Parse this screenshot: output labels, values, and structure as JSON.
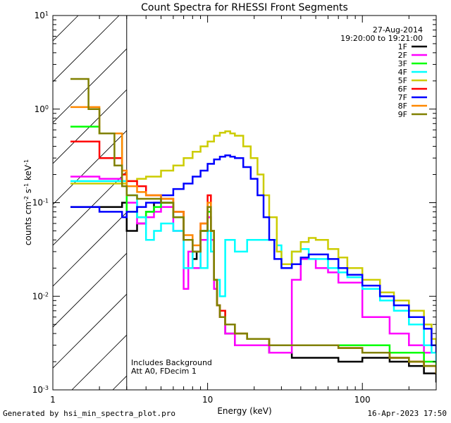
{
  "chart_data": {
    "type": "line",
    "title": "Count Spectra for RHESSI Front Segments",
    "xlabel": "Energy (keV)",
    "ylabel_parts": {
      "base": "counts cm",
      "exp1": "-2",
      "mid1": " s",
      "exp2": "-1",
      "mid2": " keV",
      "exp3": "-1"
    },
    "x_scale": "log",
    "y_scale": "log",
    "xlim": [
      1,
      300
    ],
    "ylim": [
      0.001,
      10
    ],
    "x_ticks": [
      {
        "value": 1,
        "label": "1"
      },
      {
        "value": 10,
        "label": "10"
      },
      {
        "value": 100,
        "label": "100"
      }
    ],
    "y_ticks": [
      {
        "value": 0.001,
        "base": "10",
        "exp": "-3"
      },
      {
        "value": 0.01,
        "base": "10",
        "exp": "-2"
      },
      {
        "value": 0.1,
        "base": "10",
        "exp": "-1"
      },
      {
        "value": 1,
        "base": "10",
        "exp": "0"
      },
      {
        "value": 10,
        "base": "10",
        "exp": "1"
      }
    ],
    "date": "27-Aug-2014",
    "time_range": "19:20:00 to 19:21:00",
    "shaded_region": {
      "from": 1,
      "to": 3
    },
    "annotations": [
      "Includes Background",
      "Att A0, FDecim 1"
    ],
    "series": [
      {
        "name": "1F",
        "color": "#000000",
        "x": [
          1.3,
          2.0,
          2.8,
          3.0,
          3.5,
          4.0,
          4.5,
          5.0,
          6.0,
          7.0,
          8.0,
          8.5,
          9.0,
          10.0,
          10.5,
          11.0,
          11.5,
          12,
          13,
          15,
          18,
          25,
          35,
          50,
          70,
          100,
          150,
          200,
          250,
          300
        ],
        "values": [
          0.09,
          0.09,
          0.1,
          0.05,
          0.06,
          0.08,
          0.1,
          0.1,
          0.08,
          0.04,
          0.025,
          0.03,
          0.05,
          0.07,
          0.04,
          0.015,
          0.008,
          0.006,
          0.004,
          0.003,
          0.003,
          0.0025,
          0.0022,
          0.0022,
          0.002,
          0.0022,
          0.002,
          0.0018,
          0.0015,
          0.0012
        ]
      },
      {
        "name": "2F",
        "color": "#ff00ff",
        "x": [
          1.3,
          2.0,
          2.8,
          3.0,
          3.5,
          4.0,
          4.5,
          5.0,
          6.0,
          7.0,
          7.5,
          8.0,
          9.0,
          10.0,
          10.5,
          11.0,
          11.5,
          12,
          13,
          15,
          18,
          25,
          35,
          40,
          50,
          60,
          70,
          100,
          150,
          200,
          250,
          300
        ],
        "values": [
          0.19,
          0.18,
          0.17,
          0.1,
          0.06,
          0.07,
          0.08,
          0.09,
          0.05,
          0.012,
          0.03,
          0.02,
          0.04,
          0.07,
          0.04,
          0.012,
          0.008,
          0.006,
          0.004,
          0.003,
          0.003,
          0.0025,
          0.015,
          0.025,
          0.02,
          0.018,
          0.014,
          0.006,
          0.004,
          0.003,
          0.0025,
          0.002
        ]
      },
      {
        "name": "3F",
        "color": "#00ff00",
        "x": [
          1.3,
          2.0,
          2.8,
          3.0,
          3.5,
          4.0,
          4.5,
          5.0,
          6.0,
          7.0,
          8.0,
          9.0,
          10.0,
          10.5,
          11.0,
          11.5,
          12,
          13,
          15,
          18,
          25,
          35,
          50,
          70,
          100,
          150,
          200,
          250,
          300
        ],
        "values": [
          0.65,
          0.55,
          0.2,
          0.08,
          0.07,
          0.08,
          0.09,
          0.1,
          0.07,
          0.04,
          0.03,
          0.05,
          0.08,
          0.05,
          0.015,
          0.008,
          0.007,
          0.005,
          0.004,
          0.0035,
          0.003,
          0.003,
          0.003,
          0.003,
          0.003,
          0.0025,
          0.0025,
          0.002,
          0.0018
        ]
      },
      {
        "name": "4F",
        "color": "#00ffff",
        "x": [
          1.3,
          2.0,
          2.8,
          3.0,
          3.5,
          4.0,
          4.5,
          5.0,
          6.0,
          7.0,
          8.0,
          9.0,
          10.0,
          10.5,
          11.0,
          12,
          13,
          15,
          18,
          25,
          28,
          30,
          35,
          40,
          45,
          50,
          60,
          70,
          80,
          100,
          130,
          160,
          200,
          250,
          280,
          300
        ],
        "values": [
          0.17,
          0.17,
          0.17,
          0.12,
          0.07,
          0.04,
          0.05,
          0.06,
          0.05,
          0.02,
          0.03,
          0.02,
          0.05,
          0.03,
          0.015,
          0.01,
          0.04,
          0.03,
          0.04,
          0.04,
          0.035,
          0.02,
          0.03,
          0.032,
          0.025,
          0.025,
          0.02,
          0.018,
          0.016,
          0.012,
          0.009,
          0.007,
          0.005,
          0.003,
          0.0025,
          0.002
        ]
      },
      {
        "name": "5F",
        "color": "#cccc00",
        "x": [
          1.3,
          2.0,
          2.8,
          3.0,
          3.5,
          4.0,
          5.0,
          6.0,
          7.0,
          8.0,
          9.0,
          10.0,
          11.0,
          12.0,
          13.0,
          14.0,
          15.0,
          17.0,
          19.0,
          21.0,
          23.0,
          25.0,
          28.0,
          30.0,
          35.0,
          40.0,
          45.0,
          50.0,
          60.0,
          70.0,
          80.0,
          100.0,
          130.0,
          160.0,
          200.0,
          250.0,
          280.0,
          300.0
        ],
        "values": [
          0.16,
          0.16,
          0.16,
          0.17,
          0.18,
          0.19,
          0.22,
          0.25,
          0.3,
          0.35,
          0.4,
          0.45,
          0.52,
          0.56,
          0.58,
          0.55,
          0.52,
          0.4,
          0.3,
          0.2,
          0.12,
          0.07,
          0.03,
          0.022,
          0.03,
          0.038,
          0.042,
          0.04,
          0.032,
          0.026,
          0.02,
          0.015,
          0.011,
          0.009,
          0.007,
          0.005,
          0.0035,
          0.003
        ]
      },
      {
        "name": "6F",
        "color": "#ff0000",
        "x": [
          1.3,
          2.0,
          2.8,
          3.0,
          3.5,
          4.0,
          5.0,
          6.0,
          7.0,
          8.0,
          9.0,
          10.0,
          10.5,
          11.0,
          11.5,
          12,
          13,
          15,
          18,
          25,
          35,
          50,
          70,
          100,
          150,
          200,
          250,
          300
        ],
        "values": [
          0.45,
          0.3,
          0.2,
          0.17,
          0.15,
          0.12,
          0.11,
          0.08,
          0.04,
          0.03,
          0.06,
          0.12,
          0.05,
          0.015,
          0.008,
          0.007,
          0.005,
          0.004,
          0.0035,
          0.003,
          0.003,
          0.003,
          0.0028,
          0.0025,
          0.0022,
          0.002,
          0.0018,
          0.0015
        ]
      },
      {
        "name": "7F",
        "color": "#0000ff",
        "x": [
          1.3,
          2.0,
          2.8,
          3.0,
          3.5,
          4.0,
          5.0,
          6.0,
          7.0,
          8.0,
          9.0,
          10.0,
          11.0,
          12.0,
          13.0,
          14.0,
          15.0,
          17.0,
          19.0,
          21.0,
          23.0,
          25.0,
          27.0,
          30.0,
          35.0,
          40.0,
          45.0,
          50.0,
          60.0,
          70.0,
          80.0,
          100.0,
          130.0,
          160.0,
          200.0,
          250.0,
          280.0,
          300.0
        ],
        "values": [
          0.09,
          0.08,
          0.07,
          0.08,
          0.09,
          0.1,
          0.12,
          0.14,
          0.16,
          0.19,
          0.22,
          0.26,
          0.29,
          0.31,
          0.32,
          0.31,
          0.3,
          0.24,
          0.18,
          0.12,
          0.07,
          0.04,
          0.025,
          0.02,
          0.022,
          0.026,
          0.028,
          0.028,
          0.025,
          0.02,
          0.017,
          0.013,
          0.01,
          0.008,
          0.006,
          0.0045,
          0.003,
          0.0025
        ]
      },
      {
        "name": "8F",
        "color": "#ff8800",
        "x": [
          1.3,
          2.0,
          2.8,
          3.0,
          3.5,
          4.0,
          5.0,
          6.0,
          7.0,
          8.0,
          9.0,
          10.0,
          10.5,
          11.0,
          11.5,
          12,
          13,
          15,
          18,
          25,
          35,
          50,
          70,
          100,
          150,
          200,
          250,
          300
        ],
        "values": [
          1.05,
          0.55,
          0.22,
          0.15,
          0.13,
          0.12,
          0.11,
          0.08,
          0.045,
          0.035,
          0.06,
          0.1,
          0.05,
          0.015,
          0.008,
          0.006,
          0.005,
          0.004,
          0.0035,
          0.003,
          0.003,
          0.003,
          0.0028,
          0.0025,
          0.0022,
          0.002,
          0.0018,
          0.0015
        ]
      },
      {
        "name": "9F",
        "color": "#808000",
        "x": [
          1.3,
          1.7,
          2.0,
          2.5,
          2.8,
          3.0,
          3.5,
          4.0,
          5.0,
          6.0,
          7.0,
          8.0,
          9.0,
          10.0,
          10.5,
          11.0,
          11.5,
          12,
          13,
          15,
          18,
          25,
          35,
          50,
          70,
          100,
          150,
          200,
          250,
          300
        ],
        "values": [
          2.1,
          1.0,
          0.55,
          0.25,
          0.15,
          0.12,
          0.11,
          0.11,
          0.1,
          0.07,
          0.04,
          0.03,
          0.05,
          0.09,
          0.05,
          0.015,
          0.008,
          0.006,
          0.005,
          0.004,
          0.0035,
          0.003,
          0.003,
          0.003,
          0.0028,
          0.0025,
          0.0022,
          0.002,
          0.0018,
          0.0015
        ]
      }
    ]
  },
  "footer": {
    "generator": "Generated by hsi_min_spectra_plot.pro",
    "timestamp": "16-Apr-2023 17:50"
  }
}
